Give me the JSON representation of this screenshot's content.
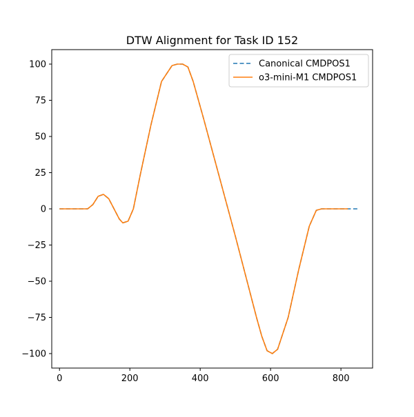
{
  "chart_data": {
    "type": "line",
    "title": "DTW Alignment for Task ID 152",
    "xlabel": "",
    "ylabel": "",
    "xlim": [
      -22,
      890
    ],
    "ylim": [
      -110,
      110
    ],
    "xticks": [
      0,
      200,
      400,
      600,
      800
    ],
    "yticks": [
      -100,
      -75,
      -50,
      -25,
      0,
      25,
      50,
      75,
      100
    ],
    "legend": {
      "placement": "top-right"
    },
    "grid": false,
    "series": [
      {
        "name": "Canonical CMDPOS1",
        "style": "dashed",
        "color": "#1f77b4",
        "x": [
          0,
          80,
          95,
          110,
          125,
          140,
          155,
          170,
          180,
          195,
          210,
          230,
          260,
          290,
          320,
          335,
          350,
          365,
          380,
          410,
          440,
          470,
          500,
          530,
          560,
          575,
          590,
          605,
          620,
          650,
          680,
          710,
          730,
          745,
          760,
          850
        ],
        "y": [
          0,
          0,
          3,
          8.7,
          10,
          7,
          0,
          -7,
          -9.7,
          -8.5,
          0,
          24,
          58,
          88,
          99,
          100,
          100,
          98,
          88,
          62,
          35,
          8,
          -19,
          -47,
          -75,
          -88,
          -98,
          -100,
          -97,
          -75,
          -42,
          -12,
          -1,
          0,
          0,
          0
        ]
      },
      {
        "name": "o3-mini-M1 CMDPOS1",
        "style": "solid",
        "color": "#ff7f0e",
        "x": [
          0,
          80,
          95,
          110,
          125,
          140,
          155,
          170,
          180,
          195,
          210,
          230,
          260,
          290,
          320,
          335,
          350,
          365,
          380,
          410,
          440,
          470,
          500,
          530,
          560,
          575,
          590,
          605,
          620,
          650,
          680,
          710,
          730,
          745,
          760,
          820
        ],
        "y": [
          0,
          0,
          3,
          8.7,
          10,
          7,
          0,
          -7,
          -9.7,
          -8.5,
          0,
          24,
          58,
          88,
          99,
          100,
          100,
          98,
          88,
          62,
          35,
          8,
          -19,
          -47,
          -75,
          -88,
          -98,
          -100,
          -97,
          -75,
          -42,
          -12,
          -1,
          0,
          0,
          0
        ]
      }
    ]
  }
}
